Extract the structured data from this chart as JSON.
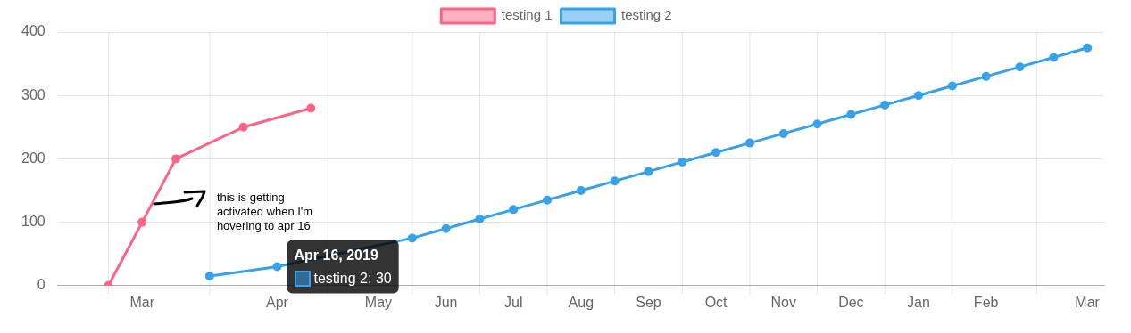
{
  "chart_data": {
    "type": "line",
    "categories": [
      null,
      null,
      "Mar",
      null,
      null,
      null,
      "Apr",
      null,
      null,
      "May",
      null,
      "Jun",
      null,
      "Jul",
      null,
      "Aug",
      null,
      "Sep",
      null,
      "Oct",
      null,
      "Nov",
      null,
      "Dec",
      null,
      "Jan",
      null,
      "Feb",
      null,
      null,
      "Mar"
    ],
    "series": [
      {
        "name": "testing 1",
        "color": "#ff6384",
        "values": [
          null,
          0,
          100,
          200,
          null,
          250,
          null,
          280,
          null,
          null,
          null,
          null,
          null,
          null,
          null,
          null,
          null,
          null,
          null,
          null,
          null,
          null,
          null,
          null,
          null,
          null,
          null,
          null,
          null,
          null,
          null
        ]
      },
      {
        "name": "testing 2",
        "color": "#36a2eb",
        "values": [
          null,
          null,
          null,
          null,
          15,
          null,
          30,
          null,
          null,
          null,
          75,
          90,
          105,
          120,
          135,
          150,
          165,
          180,
          195,
          210,
          225,
          240,
          255,
          270,
          285,
          300,
          315,
          330,
          345,
          360,
          375
        ]
      }
    ],
    "ylim": [
      0,
      400
    ],
    "yticks": [
      0,
      100,
      200,
      300,
      400
    ],
    "grid": true,
    "legend": "top",
    "marker": "circle",
    "line_style": "solid",
    "annotations": [
      "this is getting activated when I'm hovering to apr 16",
      {
        "text": "Apr 16, 2019",
        "x": "Apr",
        "y": 30
      },
      {
        "text": "testing 2: 30",
        "x": "Apr",
        "y": 30
      }
    ]
  }
}
